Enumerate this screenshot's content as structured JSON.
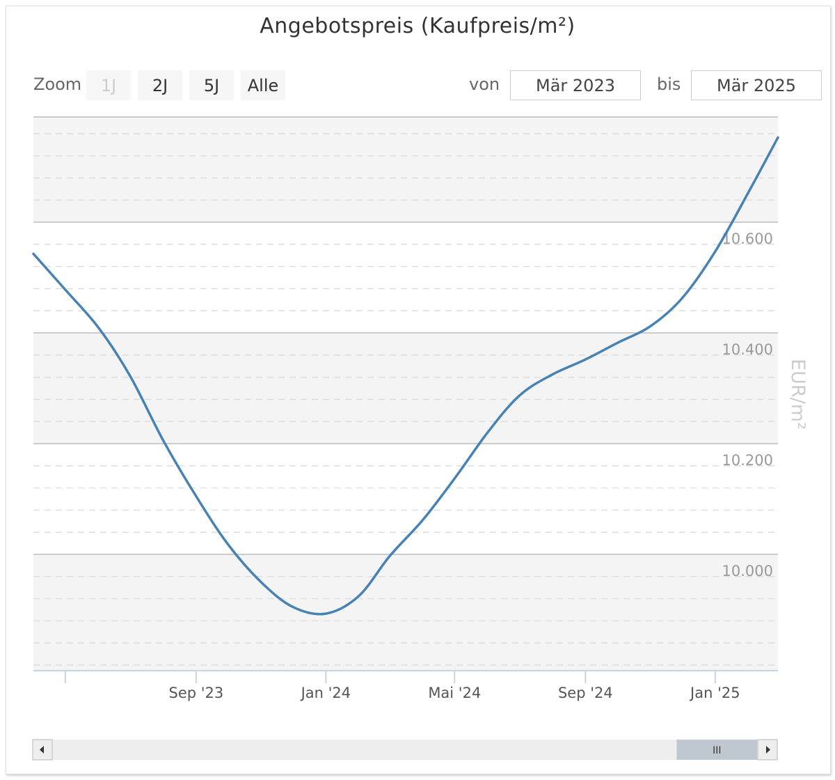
{
  "colors": {
    "series": "#4682b4",
    "band": "#f4f4f4",
    "grid_major": "#bbbbbb",
    "grid_minor": "#dddddd",
    "axis": "#c8d4e0",
    "scrollbar_track": "#eeeeee",
    "scrollbar_thumb": "#bfc8d1"
  },
  "toolbar": {
    "zoom_label": "Zoom",
    "zoom_buttons": [
      {
        "label": "1J",
        "disabled": true
      },
      {
        "label": "2J",
        "disabled": false
      },
      {
        "label": "5J",
        "disabled": false
      },
      {
        "label": "Alle",
        "disabled": false
      }
    ],
    "from_label": "von",
    "from_value": "Mär 2023",
    "to_label": "bis",
    "to_value": "Mär 2025"
  },
  "scrollbar": {
    "left_icon": "triangle-left-icon",
    "right_icon": "triangle-right-icon",
    "grip_icon": "grip-lines-icon",
    "grip_glyph": "III",
    "thumb_range": [
      0.865,
      0.973
    ]
  },
  "chart_data": {
    "type": "line",
    "title": "Angebotspreis (Kaufpreis/m²)",
    "ylabel": "EUR/m²",
    "xlabel": "",
    "ylim": [
      9790,
      10790
    ],
    "y_ticks": [
      10000,
      10200,
      10400,
      10600
    ],
    "y_tick_labels": [
      "10.000",
      "10.200",
      "10.400",
      "10.600"
    ],
    "x_ticks": [
      "2023-09-01",
      "2024-01-01",
      "2024-05-01",
      "2024-09-01",
      "2025-01-01"
    ],
    "x_tick_labels": [
      "Sep '23",
      "Jan '24",
      "Mai '24",
      "Sep '24",
      "Jan '25"
    ],
    "x_range": [
      "2023-04-01",
      "2025-03-01"
    ],
    "grid": true,
    "legend": "none",
    "series": [
      {
        "values": [
          [
            "2023-04-01",
            10543
          ],
          [
            "2023-05-01",
            10478
          ],
          [
            "2023-06-01",
            10410
          ],
          [
            "2023-07-01",
            10322
          ],
          [
            "2023-08-01",
            10206
          ],
          [
            "2023-09-01",
            10105
          ],
          [
            "2023-10-01",
            10018
          ],
          [
            "2023-11-01",
            9950
          ],
          [
            "2023-12-01",
            9905
          ],
          [
            "2024-01-01",
            9893
          ],
          [
            "2024-02-01",
            9925
          ],
          [
            "2024-03-01",
            9997
          ],
          [
            "2024-04-01",
            10062
          ],
          [
            "2024-05-01",
            10137
          ],
          [
            "2024-06-01",
            10220
          ],
          [
            "2024-07-01",
            10287
          ],
          [
            "2024-08-01",
            10325
          ],
          [
            "2024-09-01",
            10352
          ],
          [
            "2024-10-01",
            10382
          ],
          [
            "2024-11-01",
            10412
          ],
          [
            "2024-12-01",
            10463
          ],
          [
            "2025-01-01",
            10547
          ],
          [
            "2025-02-01",
            10653
          ],
          [
            "2025-03-01",
            10753
          ]
        ]
      }
    ]
  }
}
